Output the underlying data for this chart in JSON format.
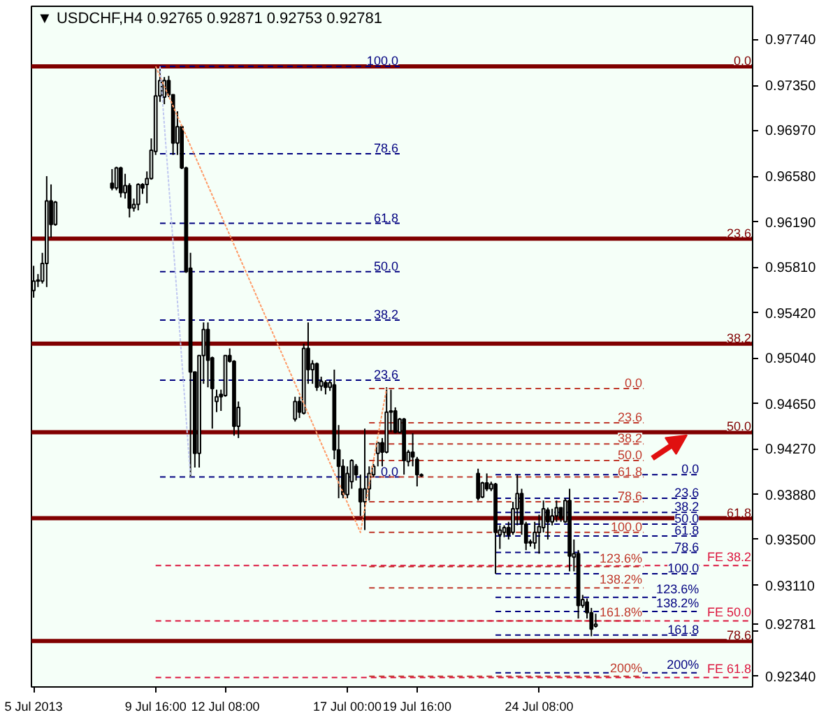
{
  "chart_data": {
    "type": "candlestick",
    "title": "▼ USDCHF,H4  0.92765 0.92871 0.92753 0.92781",
    "x": [
      "2013-07-05T00:00",
      "2013-07-05T04:00",
      "2013-07-05T08:00",
      "2013-07-05T12:00",
      "2013-07-05T16:00",
      "2013-07-05T20:00",
      "2013-07-08T00:00",
      "2013-07-08T04:00",
      "2013-07-08T08:00",
      "2013-07-08T12:00",
      "2013-07-08T16:00",
      "2013-07-08T20:00",
      "2013-07-09T00:00",
      "2013-07-09T04:00",
      "2013-07-09T08:00",
      "2013-07-09T12:00",
      "2013-07-09T16:00",
      "2013-07-09T20:00",
      "2013-07-10T00:00",
      "2013-07-10T04:00",
      "2013-07-10T08:00",
      "2013-07-10T12:00",
      "2013-07-10T16:00",
      "2013-07-10T20:00",
      "2013-07-11T00:00",
      "2013-07-11T04:00",
      "2013-07-11T08:00",
      "2013-07-11T12:00",
      "2013-07-11T16:00",
      "2013-07-11T20:00",
      "2013-07-12T00:00",
      "2013-07-12T04:00",
      "2013-07-12T08:00",
      "2013-07-12T12:00",
      "2013-07-12T16:00",
      "2013-07-12T20:00",
      "2013-07-15T00:00",
      "2013-07-15T04:00",
      "2013-07-15T08:00",
      "2013-07-15T12:00",
      "2013-07-15T16:00",
      "2013-07-15T20:00",
      "2013-07-16T00:00",
      "2013-07-16T04:00",
      "2013-07-16T08:00",
      "2013-07-16T12:00",
      "2013-07-16T16:00",
      "2013-07-16T20:00",
      "2013-07-17T00:00",
      "2013-07-17T04:00",
      "2013-07-17T08:00",
      "2013-07-17T12:00",
      "2013-07-17T16:00",
      "2013-07-17T20:00",
      "2013-07-18T00:00",
      "2013-07-18T04:00",
      "2013-07-18T08:00",
      "2013-07-18T12:00",
      "2013-07-18T16:00",
      "2013-07-18T20:00",
      "2013-07-19T00:00",
      "2013-07-19T04:00",
      "2013-07-19T08:00",
      "2013-07-19T12:00",
      "2013-07-19T16:00",
      "2013-07-19T20:00",
      "2013-07-22T00:00",
      "2013-07-22T04:00",
      "2013-07-22T08:00",
      "2013-07-22T12:00",
      "2013-07-22T16:00",
      "2013-07-22T20:00",
      "2013-07-23T00:00",
      "2013-07-23T04:00",
      "2013-07-23T08:00",
      "2013-07-23T12:00",
      "2013-07-23T16:00",
      "2013-07-23T20:00",
      "2013-07-24T00:00",
      "2013-07-24T04:00",
      "2013-07-24T08:00",
      "2013-07-24T12:00",
      "2013-07-24T16:00",
      "2013-07-24T20:00",
      "2013-07-25T00:00",
      "2013-07-25T04:00",
      "2013-07-25T08:00",
      "2013-07-25T12:00",
      "2013-07-25T16:00",
      "2013-07-25T20:00",
      "2013-07-26T00:00",
      "2013-07-26T04:00",
      "2013-07-26T08:00",
      "2013-07-26T12:00"
    ],
    "ohlc": [
      [
        0.9561,
        0.9582,
        0.9555,
        0.9569
      ],
      [
        0.957,
        0.9575,
        0.9564,
        0.9569
      ],
      [
        0.9569,
        0.9593,
        0.9567,
        0.9584
      ],
      [
        0.9584,
        0.9658,
        0.9564,
        0.9637
      ],
      [
        0.9637,
        0.9651,
        0.9606,
        0.9617
      ],
      [
        0.9617,
        0.9637,
        0.9616,
        0.9636
      ],
      [
        0.9652,
        0.9664,
        0.9646,
        0.9648
      ],
      [
        0.9648,
        0.9666,
        0.9646,
        0.9665
      ],
      [
        0.9665,
        0.9666,
        0.964,
        0.9644
      ],
      [
        0.9644,
        0.966,
        0.9639,
        0.965
      ],
      [
        0.965,
        0.9652,
        0.9623,
        0.9631
      ],
      [
        0.9631,
        0.9639,
        0.9628,
        0.9634
      ],
      [
        0.9634,
        0.9652,
        0.9629,
        0.9651
      ],
      [
        0.9651,
        0.9652,
        0.9643,
        0.9648
      ],
      [
        0.9651,
        0.9662,
        0.9635,
        0.9656
      ],
      [
        0.9656,
        0.969,
        0.9655,
        0.968
      ],
      [
        0.9679,
        0.9751,
        0.9676,
        0.9726
      ],
      [
        0.9726,
        0.9749,
        0.9721,
        0.9739
      ],
      [
        0.9725,
        0.9742,
        0.9719,
        0.9739
      ],
      [
        0.9739,
        0.9743,
        0.9725,
        0.9727
      ],
      [
        0.9727,
        0.9727,
        0.9676,
        0.9686
      ],
      [
        0.9686,
        0.9713,
        0.9676,
        0.97
      ],
      [
        0.97,
        0.9701,
        0.9664,
        0.9665
      ],
      [
        0.9665,
        0.9666,
        0.9576,
        0.9577
      ],
      [
        0.958,
        0.9593,
        0.9403,
        0.9492
      ],
      [
        0.9492,
        0.9492,
        0.9411,
        0.9423
      ],
      [
        0.9423,
        0.9506,
        0.9411,
        0.9506
      ],
      [
        0.9506,
        0.9534,
        0.9482,
        0.9528
      ],
      [
        0.9528,
        0.9534,
        0.9479,
        0.9502
      ],
      [
        0.9504,
        0.9505,
        0.9444,
        0.9478
      ],
      [
        0.9467,
        0.9477,
        0.9458,
        0.9471
      ],
      [
        0.9473,
        0.9477,
        0.9459,
        0.9471
      ],
      [
        0.9472,
        0.9506,
        0.9471,
        0.9506
      ],
      [
        0.9506,
        0.9512,
        0.95,
        0.9501
      ],
      [
        0.9501,
        0.9502,
        0.9438,
        0.9446
      ],
      [
        0.9446,
        0.9467,
        0.9436,
        0.9462
      ],
      [
        0.9452,
        0.9471,
        0.945,
        0.9467
      ],
      [
        0.9467,
        0.9471,
        0.9453,
        0.9458
      ],
      [
        0.9457,
        0.9516,
        0.9456,
        0.9512
      ],
      [
        0.9512,
        0.9534,
        0.9482,
        0.9494
      ],
      [
        0.9494,
        0.9502,
        0.9482,
        0.9499
      ],
      [
        0.9499,
        0.95,
        0.9476,
        0.9479
      ],
      [
        0.948,
        0.9488,
        0.9476,
        0.9484
      ],
      [
        0.9483,
        0.9485,
        0.9473,
        0.9479
      ],
      [
        0.9479,
        0.9485,
        0.9476,
        0.9483
      ],
      [
        0.9481,
        0.9494,
        0.9418,
        0.9426
      ],
      [
        0.9426,
        0.9447,
        0.9385,
        0.9412
      ],
      [
        0.9412,
        0.9418,
        0.9385,
        0.9388
      ],
      [
        0.9388,
        0.9412,
        0.9385,
        0.9406
      ],
      [
        0.9399,
        0.9418,
        0.9393,
        0.9417
      ],
      [
        0.9412,
        0.9414,
        0.94,
        0.9405
      ],
      [
        0.9393,
        0.9405,
        0.937,
        0.9382
      ],
      [
        0.9382,
        0.9444,
        0.9358,
        0.9393
      ],
      [
        0.9393,
        0.9412,
        0.9383,
        0.9406
      ],
      [
        0.9405,
        0.9414,
        0.9403,
        0.9412
      ],
      [
        0.9423,
        0.9432,
        0.9412,
        0.9432
      ],
      [
        0.9432,
        0.9436,
        0.9412,
        0.9424
      ],
      [
        0.9424,
        0.9479,
        0.9423,
        0.9458
      ],
      [
        0.9459,
        0.9477,
        0.9441,
        0.9458
      ],
      [
        0.9459,
        0.9462,
        0.944,
        0.9441
      ],
      [
        0.9441,
        0.9453,
        0.944,
        0.9452
      ],
      [
        0.9452,
        0.9453,
        0.9405,
        0.9417
      ],
      [
        0.9416,
        0.9426,
        0.9412,
        0.9424
      ],
      [
        0.9424,
        0.944,
        0.9412,
        0.942
      ],
      [
        0.9418,
        0.942,
        0.9395,
        0.9405
      ],
      [
        0.9405,
        0.9406,
        0.9403,
        0.9404
      ],
      [
        0.9406,
        0.941,
        0.9383,
        0.9385
      ],
      [
        0.9386,
        0.9399,
        0.9385,
        0.9398
      ],
      [
        0.9398,
        0.9406,
        0.9391,
        0.9393
      ],
      [
        0.9393,
        0.9399,
        0.9391,
        0.9397
      ],
      [
        0.9397,
        0.9398,
        0.9321,
        0.9356
      ],
      [
        0.9354,
        0.9362,
        0.9342,
        0.9358
      ],
      [
        0.9356,
        0.9362,
        0.9352,
        0.936
      ],
      [
        0.936,
        0.9365,
        0.935,
        0.9354
      ],
      [
        0.9356,
        0.9382,
        0.9354,
        0.9376
      ],
      [
        0.9376,
        0.9405,
        0.9362,
        0.9389
      ],
      [
        0.9389,
        0.9393,
        0.9354,
        0.9363
      ],
      [
        0.9363,
        0.9365,
        0.9341,
        0.9347
      ],
      [
        0.9348,
        0.935,
        0.9344,
        0.9347
      ],
      [
        0.9347,
        0.9365,
        0.9342,
        0.9356
      ],
      [
        0.9356,
        0.9371,
        0.9338,
        0.9361
      ],
      [
        0.936,
        0.9383,
        0.9356,
        0.9376
      ],
      [
        0.9375,
        0.9377,
        0.935,
        0.9365
      ],
      [
        0.9365,
        0.9376,
        0.9362,
        0.937
      ],
      [
        0.937,
        0.9383,
        0.9365,
        0.9377
      ],
      [
        0.9377,
        0.9377,
        0.9365,
        0.9368
      ],
      [
        0.9365,
        0.9385,
        0.9364,
        0.9383
      ],
      [
        0.9383,
        0.9393,
        0.9323,
        0.9336
      ],
      [
        0.9335,
        0.935,
        0.9323,
        0.9338
      ],
      [
        0.9338,
        0.9341,
        0.9283,
        0.9294
      ],
      [
        0.9294,
        0.9303,
        0.9292,
        0.9299
      ],
      [
        0.9297,
        0.93,
        0.9283,
        0.9288
      ],
      [
        0.9288,
        0.9292,
        0.9268,
        0.9274
      ],
      [
        0.92765,
        0.92871,
        0.92753,
        0.92781
      ]
    ],
    "xlim": [
      "2013-07-04T22:00",
      "2013-08-01T12:00"
    ],
    "xticks": [
      {
        "value": "2013-07-05T00:00",
        "label": "5 Jul 2013"
      },
      {
        "value": "2013-07-09T16:00",
        "label": "9 Jul 16:00"
      },
      {
        "value": "2013-07-12T08:00",
        "label": "12 Jul 08:00"
      },
      {
        "value": "2013-07-17T00:00",
        "label": "17 Jul 00:00"
      },
      {
        "value": "2013-07-19T16:00",
        "label": "19 Jul 16:00"
      },
      {
        "value": "2013-07-24T08:00",
        "label": "24 Jul 08:00"
      }
    ],
    "ylim": [
      0.9225,
      0.9802
    ],
    "yticks": [
      {
        "value": 0.9774,
        "label": "0.97740"
      },
      {
        "value": 0.9735,
        "label": "0.97350"
      },
      {
        "value": 0.9697,
        "label": "0.96970"
      },
      {
        "value": 0.9658,
        "label": "0.96580"
      },
      {
        "value": 0.9619,
        "label": "0.96190"
      },
      {
        "value": 0.9581,
        "label": "0.95810"
      },
      {
        "value": 0.9542,
        "label": "0.95420"
      },
      {
        "value": 0.9504,
        "label": "0.95040"
      },
      {
        "value": 0.9465,
        "label": "0.94650"
      },
      {
        "value": 0.9427,
        "label": "0.94270"
      },
      {
        "value": 0.9388,
        "label": "0.93880"
      },
      {
        "value": 0.935,
        "label": "0.93500"
      },
      {
        "value": 0.9311,
        "label": "0.93110"
      },
      {
        "value": 0.92781,
        "label": "0.92781"
      },
      {
        "value": 0.9272,
        "label": null
      },
      {
        "value": 0.9234,
        "label": "0.92340"
      }
    ],
    "ref_lines": [
      {
        "axis": "y",
        "value": 0.9751,
        "color": "#800000",
        "line_style": "solid"
      },
      {
        "axis": "y",
        "value": 0.9605,
        "color": "#800000",
        "line_style": "solid"
      },
      {
        "axis": "y",
        "value": 0.9516,
        "color": "#800000",
        "line_style": "solid"
      },
      {
        "axis": "y",
        "value": 0.9441,
        "color": "#800000",
        "line_style": "solid"
      },
      {
        "axis": "y",
        "value": 0.9368,
        "color": "#800000",
        "line_style": "solid"
      },
      {
        "axis": "y",
        "value": 0.9264,
        "color": "#800000",
        "line_style": "solid"
      }
    ],
    "series": [
      {
        "type": "line",
        "color": "#000080",
        "line_style": "dashed",
        "x": [
          "2013-07-09T20:00",
          "2013-07-19T00:00"
        ],
        "values": [
          0.9751,
          0.9751
        ]
      },
      {
        "type": "line",
        "color": "#000080",
        "line_style": "dashed",
        "x": [
          "2013-07-09T20:00",
          "2013-07-19T00:00"
        ],
        "values": [
          0.9677,
          0.9677
        ]
      },
      {
        "type": "line",
        "color": "#000080",
        "line_style": "dashed",
        "x": [
          "2013-07-09T20:00",
          "2013-07-19T00:00"
        ],
        "values": [
          0.9618,
          0.9618
        ]
      },
      {
        "type": "line",
        "color": "#000080",
        "line_style": "dashed",
        "x": [
          "2013-07-09T20:00",
          "2013-07-19T00:00"
        ],
        "values": [
          0.9577,
          0.9577
        ]
      },
      {
        "type": "line",
        "color": "#000080",
        "line_style": "dashed",
        "x": [
          "2013-07-09T20:00",
          "2013-07-19T00:00"
        ],
        "values": [
          0.9536,
          0.9536
        ]
      },
      {
        "type": "line",
        "color": "#000080",
        "line_style": "dashed",
        "x": [
          "2013-07-09T20:00",
          "2013-07-19T00:00"
        ],
        "values": [
          0.9485,
          0.9485
        ]
      },
      {
        "type": "line",
        "color": "#000080",
        "line_style": "dashed",
        "x": [
          "2013-07-09T20:00",
          "2013-07-19T00:00"
        ],
        "values": [
          0.9403,
          0.9403
        ]
      },
      {
        "type": "line",
        "color": "#c0392b",
        "line_style": "dashed",
        "x": [
          "2013-07-17T20:00",
          "2013-07-28T08:00"
        ],
        "values": [
          0.9478,
          0.9478
        ]
      },
      {
        "type": "line",
        "color": "#c0392b",
        "line_style": "dashed",
        "x": [
          "2013-07-17T20:00",
          "2013-07-28T08:00"
        ],
        "values": [
          0.9449,
          0.9449
        ]
      },
      {
        "type": "line",
        "color": "#c0392b",
        "line_style": "dashed",
        "x": [
          "2013-07-17T20:00",
          "2013-07-28T08:00"
        ],
        "values": [
          0.9431,
          0.9431
        ]
      },
      {
        "type": "line",
        "color": "#c0392b",
        "line_style": "dashed",
        "x": [
          "2013-07-17T20:00",
          "2013-07-28T08:00"
        ],
        "values": [
          0.9417,
          0.9417
        ]
      },
      {
        "type": "line",
        "color": "#c0392b",
        "line_style": "dashed",
        "x": [
          "2013-07-17T20:00",
          "2013-07-28T08:00"
        ],
        "values": [
          0.9403,
          0.9403
        ]
      },
      {
        "type": "line",
        "color": "#c0392b",
        "line_style": "dashed",
        "x": [
          "2013-07-17T20:00",
          "2013-07-28T08:00"
        ],
        "values": [
          0.9382,
          0.9382
        ]
      },
      {
        "type": "line",
        "color": "#c0392b",
        "line_style": "dashed",
        "x": [
          "2013-07-17T20:00",
          "2013-07-28T08:00"
        ],
        "values": [
          0.9356,
          0.9356
        ]
      },
      {
        "type": "line",
        "color": "#c0392b",
        "line_style": "dashed",
        "x": [
          "2013-07-17T20:00",
          "2013-07-28T08:00"
        ],
        "values": [
          0.9327,
          0.9327
        ]
      },
      {
        "type": "line",
        "color": "#c0392b",
        "line_style": "dashed",
        "x": [
          "2013-07-17T20:00",
          "2013-07-28T08:00"
        ],
        "values": [
          0.9309,
          0.9309
        ]
      },
      {
        "type": "line",
        "color": "#c0392b",
        "line_style": "dashed",
        "x": [
          "2013-07-17T20:00",
          "2013-07-28T08:00"
        ],
        "values": [
          0.9281,
          0.9281
        ]
      },
      {
        "type": "line",
        "color": "#c0392b",
        "line_style": "dashed",
        "x": [
          "2013-07-17T20:00",
          "2013-07-28T08:00"
        ],
        "values": [
          0.9234,
          0.9234
        ]
      },
      {
        "type": "line",
        "color": "#000080",
        "line_style": "dashed",
        "x": [
          "2013-07-22T16:00",
          "2013-07-30T12:00"
        ],
        "values": [
          0.9405,
          0.9405
        ]
      },
      {
        "type": "line",
        "color": "#000080",
        "line_style": "dashed",
        "x": [
          "2013-07-22T16:00",
          "2013-07-30T12:00"
        ],
        "values": [
          0.9385,
          0.9385
        ]
      },
      {
        "type": "line",
        "color": "#000080",
        "line_style": "dashed",
        "x": [
          "2013-07-22T16:00",
          "2013-07-30T12:00"
        ],
        "values": [
          0.9373,
          0.9373
        ]
      },
      {
        "type": "line",
        "color": "#000080",
        "line_style": "dashed",
        "x": [
          "2013-07-22T16:00",
          "2013-07-30T12:00"
        ],
        "values": [
          0.9363,
          0.9363
        ]
      },
      {
        "type": "line",
        "color": "#000080",
        "line_style": "dashed",
        "x": [
          "2013-07-22T16:00",
          "2013-07-30T12:00"
        ],
        "values": [
          0.9353,
          0.9353
        ]
      },
      {
        "type": "line",
        "color": "#000080",
        "line_style": "dashed",
        "x": [
          "2013-07-22T16:00",
          "2013-07-30T12:00"
        ],
        "values": [
          0.9339,
          0.9339
        ]
      },
      {
        "type": "line",
        "color": "#000080",
        "line_style": "dashed",
        "x": [
          "2013-07-22T16:00",
          "2013-07-30T12:00"
        ],
        "values": [
          0.9321,
          0.9321
        ]
      },
      {
        "type": "line",
        "color": "#000080",
        "line_style": "dashed",
        "x": [
          "2013-07-22T16:00",
          "2013-07-30T12:00"
        ],
        "values": [
          0.9301,
          0.9301
        ]
      },
      {
        "type": "line",
        "color": "#000080",
        "line_style": "dashed",
        "x": [
          "2013-07-22T16:00",
          "2013-07-30T12:00"
        ],
        "values": [
          0.9289,
          0.9289
        ]
      },
      {
        "type": "line",
        "color": "#000080",
        "line_style": "dashed",
        "x": [
          "2013-07-22T16:00",
          "2013-07-30T12:00"
        ],
        "values": [
          0.9269,
          0.9269
        ]
      },
      {
        "type": "line",
        "color": "#000080",
        "line_style": "dashed",
        "x": [
          "2013-07-22T16:00",
          "2013-07-30T12:00"
        ],
        "values": [
          0.9237,
          0.9237
        ]
      },
      {
        "type": "line",
        "color": "#dc143c",
        "line_style": "dashed",
        "x": [
          "2013-07-09T16:00",
          "2013-08-01T12:00"
        ],
        "values": [
          0.9328,
          0.9328
        ]
      },
      {
        "type": "line",
        "color": "#dc143c",
        "line_style": "dashed",
        "x": [
          "2013-07-09T16:00",
          "2013-08-01T12:00"
        ],
        "values": [
          0.9281,
          0.9281
        ]
      },
      {
        "type": "line",
        "color": "#dc143c",
        "line_style": "dashed",
        "x": [
          "2013-07-09T16:00",
          "2013-08-01T12:00"
        ],
        "values": [
          0.9233,
          0.9233
        ]
      },
      {
        "type": "line",
        "color": "#ff9966",
        "line_style": "dotted",
        "x": [
          "2013-07-09T16:00",
          "2013-07-17T12:00",
          "2013-07-18T12:00"
        ],
        "values": [
          0.9751,
          0.9356,
          0.9478
        ]
      },
      {
        "type": "line",
        "color": "#c0c8f0",
        "line_style": "dotted",
        "x": [
          "2013-07-09T20:00",
          "2013-07-11T00:00"
        ],
        "values": [
          0.9751,
          0.9403
        ]
      }
    ],
    "annotations": [
      {
        "text": "0.0",
        "x": "2013-08-01T12:00",
        "y": 0.9751
      },
      {
        "text": "23.6",
        "x": "2013-08-01T12:00",
        "y": 0.9605
      },
      {
        "text": "38.2",
        "x": "2013-08-01T12:00",
        "y": 0.9516
      },
      {
        "text": "50.0",
        "x": "2013-08-01T12:00",
        "y": 0.9441
      },
      {
        "text": "61.8",
        "x": "2013-08-01T12:00",
        "y": 0.9368
      },
      {
        "text": "78.6",
        "x": "2013-08-01T12:00",
        "y": 0.9264
      },
      {
        "text": "100.0",
        "x": "2013-07-19T00:00",
        "y": 0.9751
      },
      {
        "text": "78.6",
        "x": "2013-07-19T00:00",
        "y": 0.9677
      },
      {
        "text": "61.8",
        "x": "2013-07-19T00:00",
        "y": 0.9618
      },
      {
        "text": "50.0",
        "x": "2013-07-19T00:00",
        "y": 0.9577
      },
      {
        "text": "38.2",
        "x": "2013-07-19T00:00",
        "y": 0.9536
      },
      {
        "text": "23.6",
        "x": "2013-07-19T00:00",
        "y": 0.9485
      },
      {
        "text": "0.0",
        "x": "2013-07-19T00:00",
        "y": 0.9403
      },
      {
        "text": "0.0",
        "x": "2013-07-28T08:00",
        "y": 0.9478
      },
      {
        "text": "23.6",
        "x": "2013-07-28T08:00",
        "y": 0.9449
      },
      {
        "text": "38.2",
        "x": "2013-07-28T08:00",
        "y": 0.9431
      },
      {
        "text": "50.0",
        "x": "2013-07-28T08:00",
        "y": 0.9417
      },
      {
        "text": "61.8",
        "x": "2013-07-28T08:00",
        "y": 0.9403
      },
      {
        "text": "78.6",
        "x": "2013-07-28T08:00",
        "y": 0.9382
      },
      {
        "text": "100.0",
        "x": "2013-07-28T08:00",
        "y": 0.9356
      },
      {
        "text": "123.6%",
        "x": "2013-07-28T08:00",
        "y": 0.9327
      },
      {
        "text": "138.2%",
        "x": "2013-07-28T08:00",
        "y": 0.9309
      },
      {
        "text": "161.8%",
        "x": "2013-07-28T08:00",
        "y": 0.9281
      },
      {
        "text": "200%",
        "x": "2013-07-28T08:00",
        "y": 0.9234
      },
      {
        "text": "0.0",
        "x": "2013-07-30T12:00",
        "y": 0.9405
      },
      {
        "text": "23.6",
        "x": "2013-07-30T12:00",
        "y": 0.9385
      },
      {
        "text": "38.2",
        "x": "2013-07-30T12:00",
        "y": 0.9373
      },
      {
        "text": "50.0",
        "x": "2013-07-30T12:00",
        "y": 0.9363
      },
      {
        "text": "61.8",
        "x": "2013-07-30T12:00",
        "y": 0.9353
      },
      {
        "text": "78.6",
        "x": "2013-07-30T12:00",
        "y": 0.9339
      },
      {
        "text": "100.0",
        "x": "2013-07-30T12:00",
        "y": 0.9321
      },
      {
        "text": "123.6%",
        "x": "2013-07-30T12:00",
        "y": 0.9301
      },
      {
        "text": "138.2%",
        "x": "2013-07-30T12:00",
        "y": 0.9289
      },
      {
        "text": "161.8",
        "x": "2013-07-30T12:00",
        "y": 0.9269
      },
      {
        "text": "200%",
        "x": "2013-07-30T12:00",
        "y": 0.9237
      },
      {
        "text": "FE 38.2",
        "x": "2013-08-01T12:00",
        "y": 0.9328
      },
      {
        "text": "FE 50.0",
        "x": "2013-08-01T12:00",
        "y": 0.9281
      },
      {
        "text": "FE 61.8",
        "x": "2013-08-01T12:00",
        "y": 0.9233
      }
    ]
  }
}
